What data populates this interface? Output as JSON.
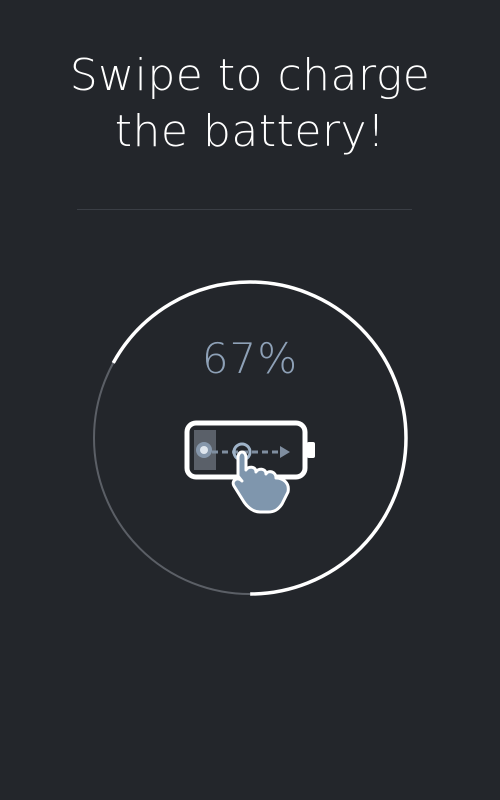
{
  "header": {
    "title_line1": "Swipe to charge",
    "title_line2": "the battery!"
  },
  "charge": {
    "percent_label": "67%",
    "level": 0.67
  },
  "icons": {
    "battery": "battery-icon",
    "hand": "swipe-hand-icon",
    "arrow": "swipe-arrow-icon"
  },
  "colors": {
    "background": "#23262b",
    "ring_active": "#ffffff",
    "ring_inactive": "#5b5f66",
    "percent_text": "#8ea1b7",
    "hand_fill": "#7f96ad"
  }
}
